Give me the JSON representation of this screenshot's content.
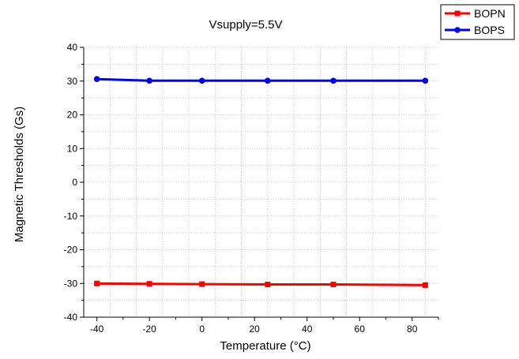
{
  "chart_data": {
    "type": "line",
    "title": "Vsupply=5.5V",
    "xlabel": "Temperature (°C)",
    "ylabel": "Magnetic Thresholds (Gs)",
    "xlim": [
      -45,
      90
    ],
    "ylim": [
      -40,
      40
    ],
    "xticks": [
      -40,
      -20,
      0,
      20,
      40,
      60,
      80
    ],
    "yticks": [
      40,
      30,
      20,
      10,
      0,
      -10,
      -20,
      -30,
      -40
    ],
    "grid": true,
    "legend_position": "top-right",
    "series": [
      {
        "name": "BOPN",
        "color": "#ff0000",
        "marker": "square",
        "x": [
          -40,
          -20,
          0,
          25,
          50,
          85
        ],
        "y": [
          -30.0,
          -30.1,
          -30.2,
          -30.3,
          -30.3,
          -30.5
        ]
      },
      {
        "name": "BOPS",
        "color": "#0000ff",
        "marker": "circle",
        "x": [
          -40,
          -20,
          0,
          25,
          50,
          85
        ],
        "y": [
          30.6,
          30.1,
          30.1,
          30.1,
          30.1,
          30.1
        ]
      }
    ]
  }
}
